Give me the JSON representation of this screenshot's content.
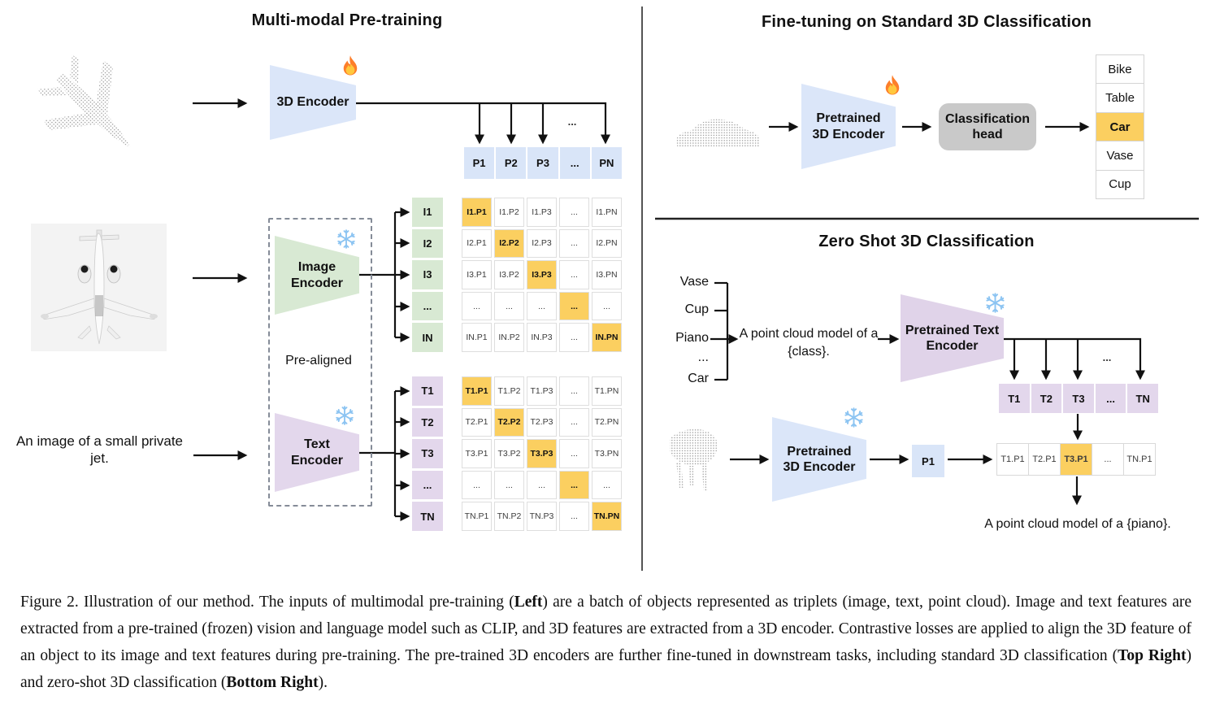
{
  "left_panel": {
    "title": "Multi-modal Pre-training",
    "encoder_3d_label": "3D Encoder",
    "image_encoder_label": "Image Encoder",
    "text_encoder_label": "Text Encoder",
    "pre_aligned_label": "Pre-aligned",
    "input_caption": "An image of a small private jet.",
    "p_row": [
      "P1",
      "P2",
      "P3",
      "...",
      "PN"
    ],
    "i_rows": [
      "I1",
      "I2",
      "I3",
      "...",
      "IN"
    ],
    "t_rows": [
      "T1",
      "T2",
      "T3",
      "...",
      "TN"
    ],
    "i_matrix": [
      [
        "I1.P1",
        "I1.P2",
        "I1.P3",
        "...",
        "I1.PN"
      ],
      [
        "I2.P1",
        "I2.P2",
        "I2.P3",
        "...",
        "I2.PN"
      ],
      [
        "I3.P1",
        "I3.P2",
        "I3.P3",
        "...",
        "I3.PN"
      ],
      [
        "...",
        "...",
        "...",
        "...",
        "..."
      ],
      [
        "IN.P1",
        "IN.P2",
        "IN.P3",
        "...",
        "IN.PN"
      ]
    ],
    "t_matrix": [
      [
        "T1.P1",
        "T1.P2",
        "T1.P3",
        "...",
        "T1.PN"
      ],
      [
        "T2.P1",
        "T2.P2",
        "T2.P3",
        "...",
        "T2.PN"
      ],
      [
        "T3.P1",
        "T3.P2",
        "T3.P3",
        "...",
        "T3.PN"
      ],
      [
        "...",
        "...",
        "...",
        "...",
        "..."
      ],
      [
        "TN.P1",
        "TN.P2",
        "TN.P3",
        "...",
        "TN.PN"
      ]
    ]
  },
  "top_right": {
    "title": "Fine-tuning on Standard 3D Classification",
    "encoder_label": "Pretrained 3D Encoder",
    "head_label": "Classification head",
    "classes": [
      "Bike",
      "Table",
      "Car",
      "Vase",
      "Cup"
    ],
    "highlighted_class": "Car"
  },
  "bottom_right": {
    "title": "Zero Shot 3D Classification",
    "class_words": [
      "Vase",
      "Cup",
      "Piano",
      "...",
      "Car"
    ],
    "prompt": "A point cloud model of a {class}.",
    "text_encoder_label": "Pretrained Text Encoder",
    "encoder_label": "Pretrained 3D Encoder",
    "t_row": [
      "T1",
      "T2",
      "T3",
      "...",
      "TN"
    ],
    "p_cell": "P1",
    "result_row": [
      "T1.P1",
      "T2.P1",
      "T3.P1",
      "...",
      "TN.P1"
    ],
    "result_highlight_index": 2,
    "output_prompt": "A point cloud model of a {piano}."
  },
  "misc": {
    "ellipsis": "..."
  },
  "icons": {
    "flame-icon": "fire (trainable)",
    "snowflake-icon": "snowflake (frozen)"
  },
  "colors": {
    "blue": "#d9e5f8",
    "green": "#d8e9d3",
    "purple": "#e3d7ec",
    "orange": "#fbcf60",
    "head_gray": "#c9c9c9"
  },
  "caption": {
    "segments": [
      {
        "t": "Figure 2. Illustration of our method. The inputs of multimodal pre-training (",
        "b": 0
      },
      {
        "t": "Left",
        "b": 1
      },
      {
        "t": ") are a batch of objects represented as triplets (image, text, point cloud). Image and text features are extracted from a pre-trained (frozen) vision and language model such as CLIP, and 3D features are extracted from a 3D encoder. Contrastive losses are applied to align the 3D feature of an object to its image and text features during pre-training. The pre-trained 3D encoders are further fine-tuned in downstream tasks, including standard 3D classification (",
        "b": 0
      },
      {
        "t": "Top Right",
        "b": 1
      },
      {
        "t": ") and zero-shot 3D classification (",
        "b": 0
      },
      {
        "t": "Bottom Right",
        "b": 1
      },
      {
        "t": ").",
        "b": 0
      }
    ]
  }
}
